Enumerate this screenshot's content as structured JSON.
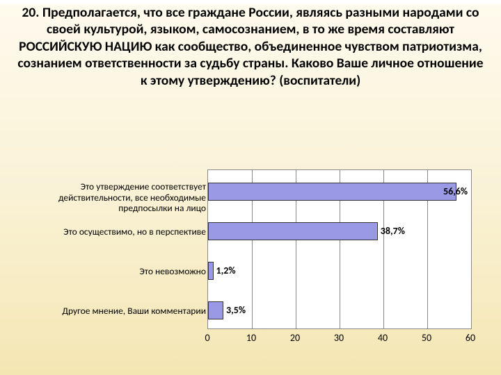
{
  "slide": {
    "background": "linear-gradient(180deg, #fefaed 0%, #faf2d6 50%, #f4e6b2 100%)",
    "title": "20. Предполагается, что все граждане России, являясь разными народами со своей культурой, языком, самосознанием, в то же время составляют РОССИЙСКУЮ НАЦИЮ как сообщество, объединенное чувством патриотизма, сознанием ответственности за судьбу страны. Каково Ваше личное отношение к этому утверждению?    (воспитатели)"
  },
  "chart": {
    "type": "bar-horizontal",
    "plot_bg": "#ffffff",
    "axis_color": "#888888",
    "bar_color": "#9999e5",
    "bar_border_color": "#333333",
    "xlim": [
      0,
      60
    ],
    "xtick_step": 10,
    "xticks": [
      "0",
      "10",
      "20",
      "30",
      "40",
      "50",
      "60"
    ],
    "label_fontsize": 14,
    "categories": [
      {
        "label": "Это утверждение соответствует действительности, все необходимые предпосылки на лицо",
        "value": 56.6,
        "value_label": "56,6%",
        "lines": 2
      },
      {
        "label": "Это осуществимо, но в перспективе",
        "value": 38.7,
        "value_label": "38,7%",
        "lines": 1
      },
      {
        "label": "Это невозможно",
        "value": 1.2,
        "value_label": "1,2%",
        "lines": 1
      },
      {
        "label": "Другое мнение, Ваши комментарии",
        "value": 3.5,
        "value_label": "3,5%",
        "lines": 1
      }
    ]
  }
}
